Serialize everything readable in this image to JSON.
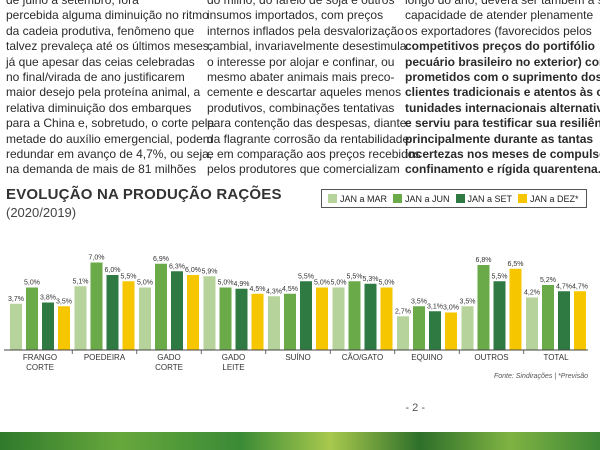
{
  "text_columns": {
    "col1": [
      "de julho a setembro, fora",
      "percebida alguma diminuição no ritmo",
      "da cadeia produtiva, fenômeno que",
      "talvez prevaleça até os últimos meses,",
      "já que apesar das ceias celebradas",
      "no final/virada de ano justificarem",
      "maior desejo pela proteína animal, a",
      "relativa diminuição dos embarques",
      "para a China e, sobretudo, o corte pela",
      "metade do auxílio emergencial, podem",
      "redundar em avanço de 4,7%, ou seja,",
      "na demanda de mais de 81 milhões"
    ],
    "col2": [
      "do milho, do farelo de soja e outros",
      "insumos importados, com preços",
      "internos inflados pela desvalorização",
      "cambial, invariavelmente desestimula",
      "o interesse por alojar e confinar, ou",
      "mesmo abater animais mais preco-",
      "cemente e descartar aqueles menos",
      "produtivos, combinações tentativas",
      "para contenção das despesas, diante",
      "da flagrante corrosão da rentabilidade",
      "e em comparação aos preços recebidos",
      "pelos produtores que comercializam"
    ],
    "col3": [
      "longo do ano, deverá ser também a sua",
      "capacidade de atender plenamente",
      "os exportadores (favorecidos pelos",
      "competitivos preços do portifólio",
      "pecuário brasileiro no exterior) com-",
      "prometidos com o suprimento dos",
      "clientes tradicionais e atentos às opor-",
      "tunidades internacionais alternativas,",
      "e serviu para testificar sua resiliência,",
      "principalmente durante as tantas",
      "incertezas nos meses de compulsório",
      "confinamento e rígida quarentena."
    ]
  },
  "chart_data": {
    "type": "bar",
    "title": "EVOLUÇÃO NA PRODUÇÃO RAÇÕES",
    "subtitle": "(2020/2019)",
    "categories": [
      [
        "FRANGO",
        "CORTE"
      ],
      [
        "POEDEIRA"
      ],
      [
        "GADO",
        "CORTE"
      ],
      [
        "GADO",
        "LEITE"
      ],
      [
        "SUÍNO"
      ],
      [
        "CÃO/GATO"
      ],
      [
        "EQUINO"
      ],
      [
        "OUTROS"
      ],
      [
        "TOTAL"
      ]
    ],
    "series": [
      {
        "name": "JAN a MAR",
        "color": "#b5d39a",
        "values": [
          3.7,
          5.1,
          5.0,
          5.9,
          4.3,
          5.0,
          2.7,
          3.5,
          4.2
        ],
        "labels": [
          "3,7%",
          "5,1%",
          "5,0%",
          "5,9%",
          "4,3%",
          "5,0%",
          "2,7%",
          "3,5%",
          "4,2%"
        ]
      },
      {
        "name": "JAN a JUN",
        "color": "#6aaa48",
        "values": [
          5.0,
          7.0,
          6.9,
          5.0,
          4.5,
          5.5,
          3.5,
          6.8,
          5.2
        ],
        "labels": [
          "5,0%",
          "7,0%",
          "6,9%",
          "5,0%",
          "4,5%",
          "5,5%",
          "3,5%",
          "6,8%",
          "5,2%"
        ]
      },
      {
        "name": "JAN a SET",
        "color": "#2f7a43",
        "values": [
          3.8,
          6.0,
          6.3,
          4.9,
          5.5,
          5.3,
          3.1,
          5.5,
          4.7
        ],
        "labels": [
          "3,8%",
          "6,0%",
          "6,3%",
          "4,9%",
          "5,5%",
          "5,3%",
          "3,1%",
          "5,5%",
          "4,7%"
        ]
      },
      {
        "name": "JAN a DEZ*",
        "color": "#f6c600",
        "values": [
          3.5,
          5.5,
          6.0,
          4.5,
          5.0,
          5.0,
          3.0,
          6.5,
          4.7
        ],
        "labels": [
          "3,5%",
          "5,5%",
          "6,0%",
          "4,5%",
          "5,0%",
          "5,0%",
          "3,0%",
          "6,5%",
          "4,7%"
        ]
      }
    ],
    "source": "Fonte: Sindirações  |  *Previsão",
    "legend": "top-right",
    "grid": false
  },
  "page_number": "- 2 -"
}
